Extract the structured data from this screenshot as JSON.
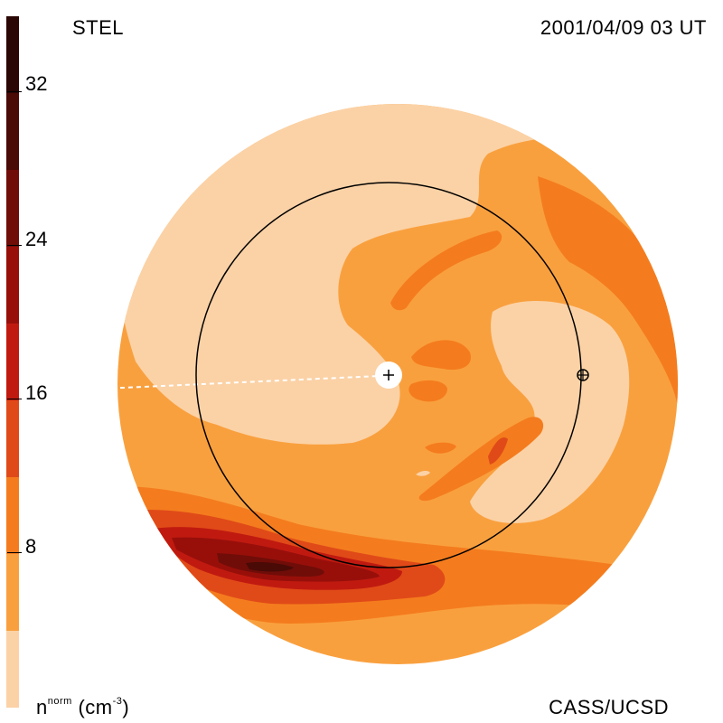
{
  "header": {
    "instrument": "STEL",
    "timestamp": "2001/04/09 03 UT"
  },
  "footer": {
    "credit": "CASS/UCSD",
    "quantity": "n",
    "quantity_sup": "norm",
    "unit": "(cm",
    "unit_sup": "-3",
    "unit_close": ")"
  },
  "colorbar": {
    "ticks": [
      "32",
      "24",
      "16",
      "8"
    ],
    "levels": [
      {
        "color": "#2a0604"
      },
      {
        "color": "#4a0a06"
      },
      {
        "color": "#700d08"
      },
      {
        "color": "#980f0a"
      },
      {
        "color": "#c01a10"
      },
      {
        "color": "#e04a18"
      },
      {
        "color": "#f47c1e"
      },
      {
        "color": "#f9a03e"
      },
      {
        "color": "#fbd2a6"
      }
    ]
  },
  "markers": {
    "sun_symbol": "+",
    "earth_symbol": "⊕"
  },
  "colors": {
    "lightest": "#fbd2a6",
    "light": "#f9a03e",
    "mid": "#f47c1e",
    "midhigh": "#e04a18",
    "high": "#c01a10",
    "dark": "#980f0a",
    "darker": "#700d08",
    "darkest": "#4a0a06"
  }
}
